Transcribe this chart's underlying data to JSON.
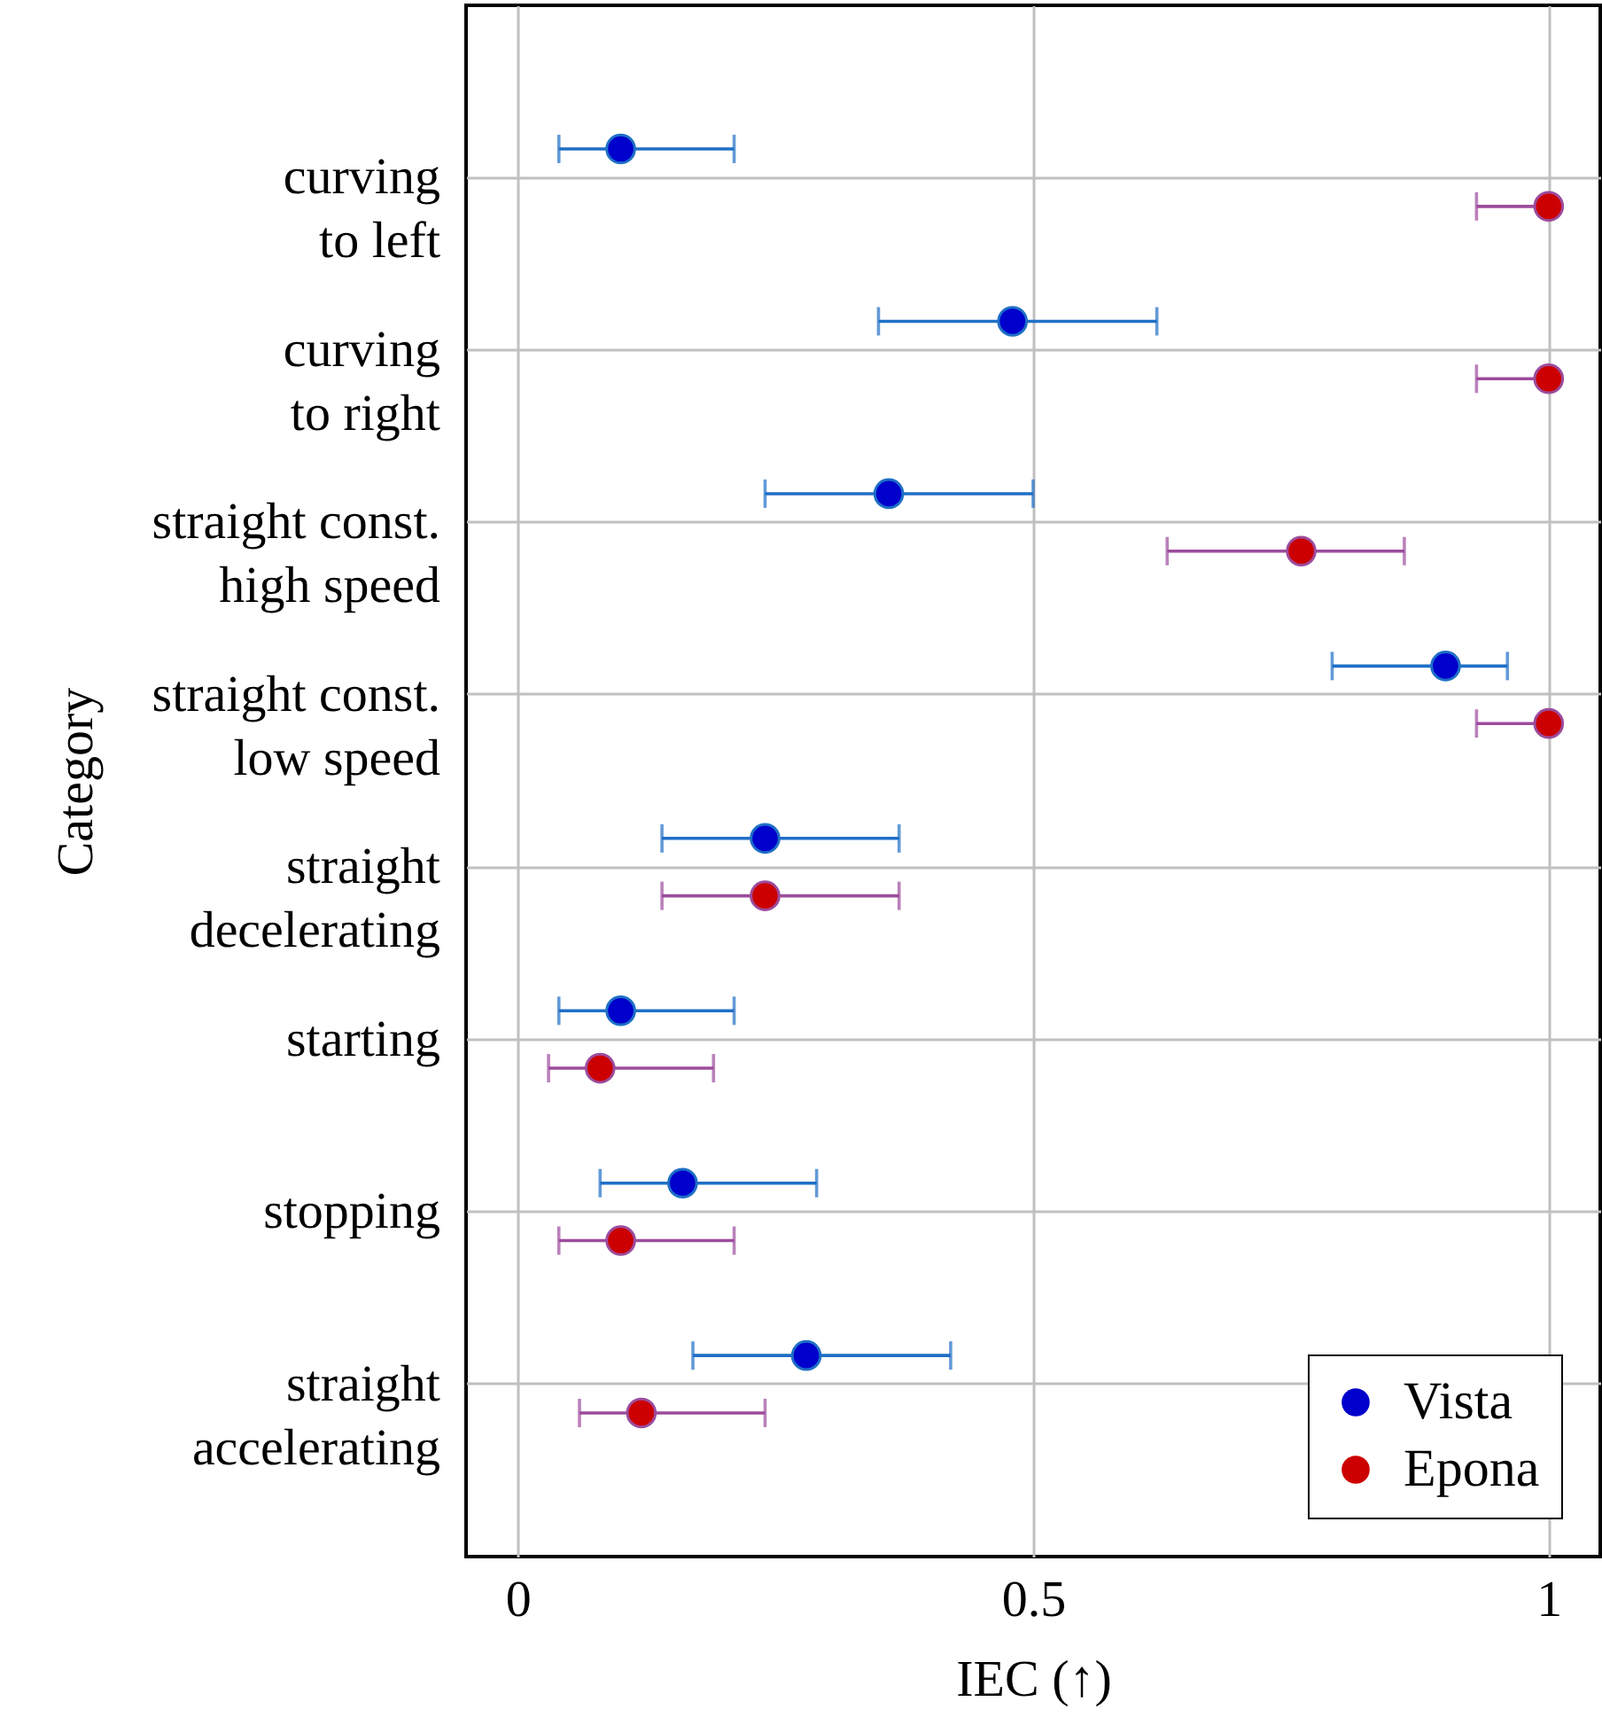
{
  "chart_data": {
    "type": "scatter",
    "orientation": "horizontal",
    "xlabel": "IEC (↑)",
    "ylabel": "Category",
    "categories": [
      "curving\nto left",
      "curving\nto right",
      "straight const.\nhigh speed",
      "straight const.\nlow speed",
      "straight\ndecelerating",
      "starting",
      "stopping",
      "straight\naccelerating"
    ],
    "xlim": [
      -0.05,
      1.05
    ],
    "xticks": [
      0,
      0.5,
      1
    ],
    "grid": true,
    "legend": "bottom right",
    "marker": "circle",
    "series": [
      {
        "name": "Vista",
        "color": "#0000cc",
        "values": [
          0.1,
          0.48,
          0.36,
          0.9,
          0.24,
          0.1,
          0.16,
          0.28
        ],
        "errors": [
          [
            0.04,
            0.21
          ],
          [
            0.35,
            0.62
          ],
          [
            0.24,
            0.5
          ],
          [
            0.79,
            0.96
          ],
          [
            0.14,
            0.37
          ],
          [
            0.04,
            0.21
          ],
          [
            0.08,
            0.29
          ],
          [
            0.17,
            0.42
          ]
        ]
      },
      {
        "name": "Epona",
        "color": "#cc0000",
        "values": [
          1.0,
          1.0,
          0.76,
          1.0,
          0.24,
          0.08,
          0.1,
          0.12
        ],
        "errors": [
          [
            0.93,
            1.0
          ],
          [
            0.93,
            1.0
          ],
          [
            0.63,
            0.86
          ],
          [
            0.93,
            1.0
          ],
          [
            0.14,
            0.37
          ],
          [
            0.03,
            0.19
          ],
          [
            0.04,
            0.21
          ],
          [
            0.06,
            0.24
          ]
        ]
      }
    ]
  }
}
